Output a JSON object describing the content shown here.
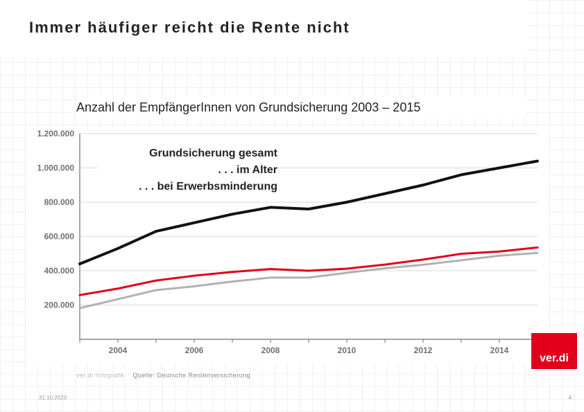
{
  "header": {
    "title": "Immer häufiger reicht die Rente nicht",
    "subtitle": "Anzahl der EmpfängerInnen von Grundsicherung 2003 – 2015"
  },
  "legend": {
    "items": [
      "Grundsicherung gesamt",
      ". . . im Alter",
      ". . . bei Erwerbsminderung"
    ]
  },
  "chart": {
    "type": "line",
    "background_color": "#ffffff",
    "axis_color": "#706f6f",
    "grid_color": "#d9d9d9",
    "tick_label_color": "#706f6f",
    "tick_fontsize": 12,
    "y": {
      "min": 0,
      "max": 1200000,
      "tick_step": 200000,
      "ticks": [
        200000,
        400000,
        600000,
        800000,
        1000000,
        1200000
      ],
      "tick_labels": [
        "200.000",
        "400.000",
        "600.000",
        "800.000",
        "1.000.000",
        "1.200.000"
      ]
    },
    "x": {
      "years": [
        2003,
        2004,
        2005,
        2006,
        2007,
        2008,
        2009,
        2010,
        2011,
        2012,
        2013,
        2014,
        2015
      ],
      "tick_years": [
        2004,
        2006,
        2008,
        2010,
        2012,
        2014
      ],
      "tick_labels": [
        "2004",
        "2006",
        "2008",
        "2010",
        "2012",
        "2014"
      ]
    },
    "series": [
      {
        "name": "Grundsicherung gesamt",
        "color": "#111111",
        "stroke_width": 4,
        "values": [
          440000,
          530000,
          630000,
          680000,
          730000,
          770000,
          760000,
          800000,
          850000,
          900000,
          960000,
          1000000,
          1040000
        ]
      },
      {
        "name": "im Alter",
        "color": "#e2001a",
        "stroke_width": 3,
        "values": [
          258000,
          296000,
          343000,
          371000,
          393000,
          410000,
          400000,
          412000,
          436000,
          465000,
          499000,
          512000,
          536000
        ]
      },
      {
        "name": "bei Erwerbsminderung",
        "color": "#b1b1b1",
        "stroke_width": 3,
        "values": [
          182000,
          234000,
          287000,
          309000,
          337000,
          360000,
          360000,
          388000,
          414000,
          435000,
          461000,
          488000,
          504000
        ]
      }
    ]
  },
  "logo": {
    "text": "ver.di",
    "bg": "#e2001a"
  },
  "credit": {
    "brand": "ver.di Infografik",
    "source_label": "Quelle:",
    "source": "Deutsche Rentenversicherung"
  },
  "footer": {
    "date": "31.10.2020",
    "page": "4"
  }
}
